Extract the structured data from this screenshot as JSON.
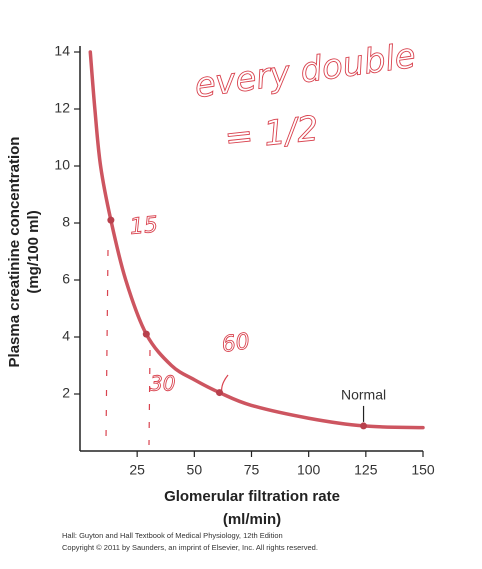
{
  "chart_data": {
    "type": "line",
    "xlabel": "Glomerular filtration rate",
    "xlabel_unit": "(ml/min)",
    "ylabel": "Plasma creatinine concentration",
    "ylabel_unit": "(mg/100 ml)",
    "xlim": [
      0,
      150
    ],
    "ylim": [
      0,
      14
    ],
    "xticks": [
      25,
      50,
      75,
      100,
      125,
      150
    ],
    "yticks": [
      2,
      4,
      6,
      8,
      10,
      12,
      14
    ],
    "series": [
      {
        "name": "Plasma creatinine curve",
        "color": "#cd5560",
        "x": [
          4.5,
          6.5,
          9,
          13.5,
          20,
          29,
          40,
          50,
          61,
          75,
          100,
          124,
          150
        ],
        "values": [
          14,
          12,
          10,
          8.1,
          6,
          4.1,
          3.0,
          2.5,
          2.05,
          1.6,
          1.15,
          0.88,
          0.82
        ]
      },
      {
        "name": "Points",
        "color": "#b8404c",
        "x": [
          13.5,
          29,
          61,
          124
        ],
        "values": [
          8.1,
          4.1,
          2.05,
          0.88
        ]
      }
    ],
    "point_label": "Normal",
    "annotations": [
      "every double",
      "= 1/2",
      "15",
      "30",
      "60"
    ],
    "caption": [
      "Hall: Guyton and Hall Textbook of Medical Physiology, 12th Edition",
      "Copyright © 2011 by Saunders, an imprint of Elsevier, Inc. All rights reserved."
    ]
  }
}
